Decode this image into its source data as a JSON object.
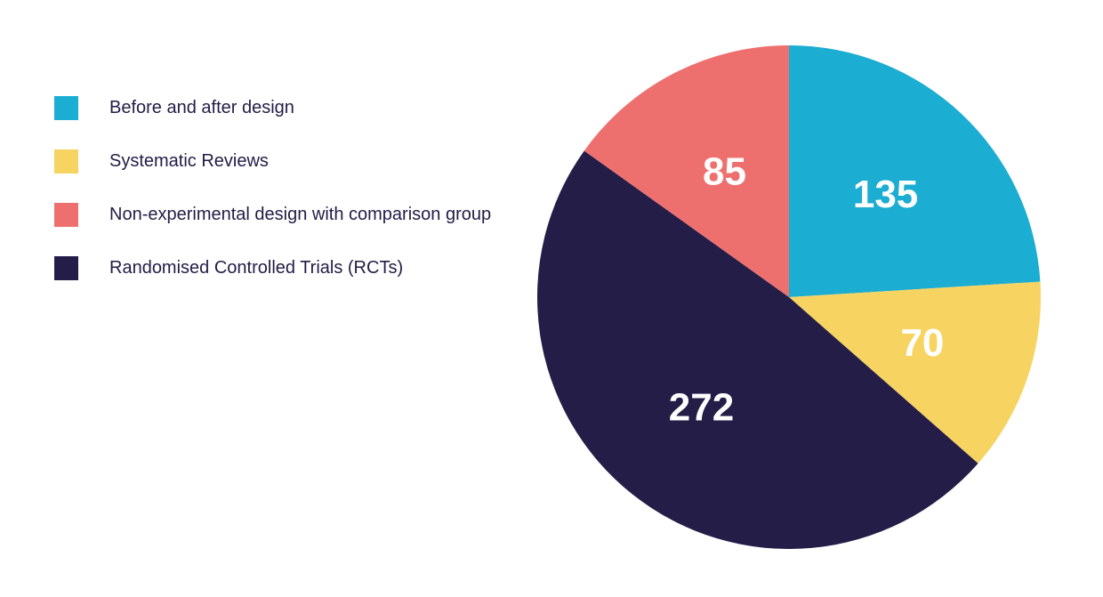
{
  "chart_data": {
    "type": "pie",
    "title": "",
    "categories": [
      "Before and after design",
      "Systematic Reviews",
      "Randomised Controlled Trials (RCTs)",
      "Non-experimental design with comparison group"
    ],
    "values": [
      135,
      70,
      272,
      85
    ],
    "value_labels": [
      "135",
      "70",
      "272",
      "85"
    ],
    "colors": [
      "#1cadd2",
      "#f7d461",
      "#241d47",
      "#ee706e"
    ],
    "start_angle_deg": 270,
    "direction": "clockwise",
    "legend_placement": "left",
    "legend": [
      {
        "label": "Before and after design",
        "color": "#1cadd2"
      },
      {
        "label": "Systematic Reviews",
        "color": "#f7d461"
      },
      {
        "label": "Non-experimental design with comparison group",
        "color": "#ee706e"
      },
      {
        "label": "Randomised Controlled Trials (RCTs)",
        "color": "#241d47"
      }
    ]
  }
}
